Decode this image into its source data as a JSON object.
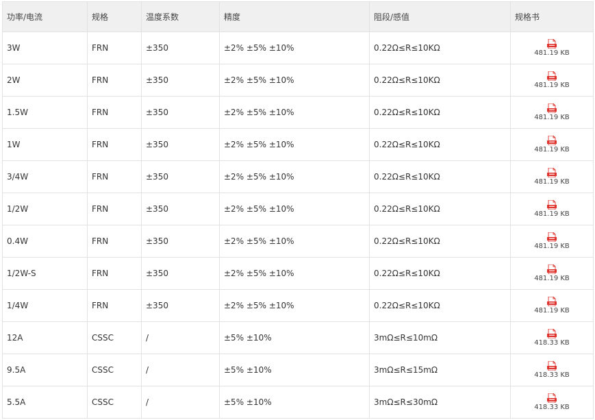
{
  "columns": [
    "功率/电流",
    "规格",
    "温度系数",
    "精度",
    "阻段/感值",
    "规格书"
  ],
  "rows": [
    {
      "power": "3W",
      "spec": "FRN",
      "tcr": "±350",
      "accuracy": "±2% ±5% ±10%",
      "range": "0.22Ω≤R≤10KΩ",
      "file_size": "481.19 KB"
    },
    {
      "power": "2W",
      "spec": "FRN",
      "tcr": "±350",
      "accuracy": "±2% ±5% ±10%",
      "range": "0.22Ω≤R≤10KΩ",
      "file_size": "481.19 KB"
    },
    {
      "power": "1.5W",
      "spec": "FRN",
      "tcr": "±350",
      "accuracy": "±2% ±5% ±10%",
      "range": "0.22Ω≤R≤10KΩ",
      "file_size": "481.19 KB"
    },
    {
      "power": "1W",
      "spec": "FRN",
      "tcr": "±350",
      "accuracy": "±2% ±5% ±10%",
      "range": "0.22Ω≤R≤10KΩ",
      "file_size": "481.19 KB"
    },
    {
      "power": "3/4W",
      "spec": "FRN",
      "tcr": "±350",
      "accuracy": "±2% ±5% ±10%",
      "range": "0.22Ω≤R≤10KΩ",
      "file_size": "481.19 KB"
    },
    {
      "power": "1/2W",
      "spec": "FRN",
      "tcr": "±350",
      "accuracy": "±2% ±5% ±10%",
      "range": "0.22Ω≤R≤10KΩ",
      "file_size": "481.19 KB"
    },
    {
      "power": "0.4W",
      "spec": "FRN",
      "tcr": "±350",
      "accuracy": "±2% ±5% ±10%",
      "range": "0.22Ω≤R≤10KΩ",
      "file_size": "481.19 KB"
    },
    {
      "power": "1/2W-S",
      "spec": "FRN",
      "tcr": "±350",
      "accuracy": "±2% ±5% ±10%",
      "range": "0.22Ω≤R≤10KΩ",
      "file_size": "481.19 KB"
    },
    {
      "power": "1/4W",
      "spec": "FRN",
      "tcr": "±350",
      "accuracy": "±2% ±5% ±10%",
      "range": "0.22Ω≤R≤10KΩ",
      "file_size": "481.19 KB"
    },
    {
      "power": "12A",
      "spec": "CSSC",
      "tcr": "/",
      "accuracy": "±5% ±10%",
      "range": "3mΩ≤R≤10mΩ",
      "file_size": "418.33 KB"
    },
    {
      "power": "9.5A",
      "spec": "CSSC",
      "tcr": "/",
      "accuracy": "±5% ±10%",
      "range": "3mΩ≤R≤15mΩ",
      "file_size": "418.33 KB"
    },
    {
      "power": "5.5A",
      "spec": "CSSC",
      "tcr": "/",
      "accuracy": "±5% ±10%",
      "range": "3mΩ≤R≤30mΩ",
      "file_size": "418.33 KB"
    }
  ],
  "icons": {
    "file": "pdf-icon"
  },
  "colors": {
    "pdf_red": "#e0322c",
    "header_bg": "#f0f0f0",
    "border": "#e2e2e2"
  }
}
